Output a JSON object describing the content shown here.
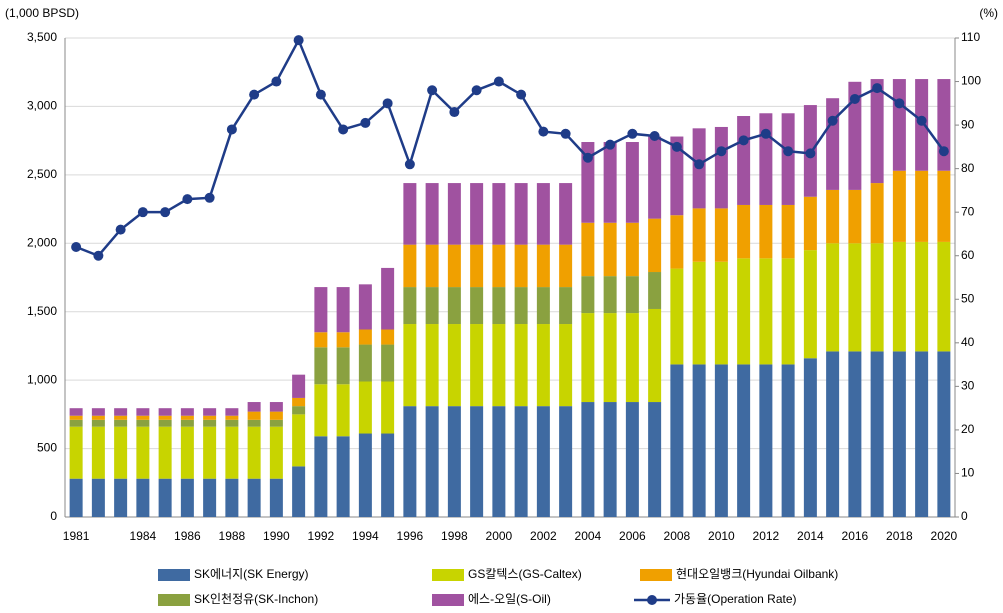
{
  "chart_data": {
    "type": "bar",
    "stacked": true,
    "y_label": "(1,000 BPSD)",
    "y2_label": "(%)",
    "categories": [
      "1981",
      null,
      null,
      "1984",
      null,
      "1986",
      null,
      "1988",
      null,
      "1990",
      null,
      "1992",
      null,
      "1994",
      null,
      "1996",
      null,
      "1998",
      null,
      "2000",
      null,
      "2002",
      null,
      "2004",
      null,
      "2006",
      null,
      "2008",
      null,
      "2010",
      null,
      "2012",
      null,
      "2014",
      null,
      "2016",
      null,
      "2018",
      null,
      "2020"
    ],
    "series": [
      {
        "name": "SK에너지(SK Energy)",
        "color": "#3f6aa1",
        "values": [
          280,
          280,
          280,
          280,
          280,
          280,
          280,
          280,
          280,
          280,
          370,
          590,
          590,
          610,
          610,
          810,
          810,
          810,
          810,
          810,
          810,
          810,
          810,
          840,
          840,
          840,
          840,
          1115,
          1115,
          1115,
          1115,
          1115,
          1115,
          1160,
          1210,
          1210,
          1210,
          1210,
          1210,
          1210
        ]
      },
      {
        "name": "GS칼텍스(GS-Caltex)",
        "color": "#c8d400",
        "values": [
          380,
          380,
          380,
          380,
          380,
          380,
          380,
          380,
          380,
          380,
          380,
          380,
          380,
          380,
          380,
          600,
          600,
          600,
          600,
          600,
          600,
          600,
          600,
          650,
          650,
          650,
          680,
          700,
          750,
          750,
          775,
          775,
          775,
          790,
          790,
          790,
          790,
          800,
          800,
          800
        ]
      },
      {
        "name": "SK인천정유(SK-Inchon)",
        "color": "#8aa140",
        "values": [
          50,
          50,
          50,
          50,
          50,
          50,
          50,
          50,
          50,
          50,
          60,
          270,
          270,
          270,
          270,
          270,
          270,
          270,
          270,
          270,
          270,
          270,
          270,
          270,
          270,
          270,
          270,
          0,
          0,
          0,
          0,
          0,
          0,
          0,
          0,
          0,
          0,
          0,
          0,
          0
        ]
      },
      {
        "name": "현대오일뱅크(Hyundai Oilbank)",
        "color": "#f0a000",
        "values": [
          30,
          30,
          30,
          30,
          30,
          30,
          30,
          30,
          60,
          60,
          60,
          110,
          110,
          110,
          110,
          310,
          310,
          310,
          310,
          310,
          310,
          310,
          310,
          390,
          390,
          390,
          390,
          390,
          390,
          390,
          390,
          390,
          390,
          390,
          390,
          390,
          440,
          520,
          520,
          520
        ]
      },
      {
        "name": "에스-오일(S-Oil)",
        "color": "#a052a0",
        "values": [
          55,
          55,
          55,
          55,
          55,
          55,
          55,
          55,
          70,
          70,
          170,
          330,
          330,
          330,
          450,
          450,
          450,
          450,
          450,
          450,
          450,
          450,
          450,
          590,
          590,
          590,
          600,
          575,
          585,
          595,
          650,
          670,
          670,
          670,
          670,
          790,
          760,
          670,
          670,
          670
        ]
      },
      {
        "name": "가동율(Operation Rate)",
        "color": "#1f3c88",
        "type": "line",
        "axis": "y2",
        "values": [
          62,
          60,
          66,
          70,
          70,
          73,
          73.3,
          89,
          97,
          100,
          109.5,
          97,
          89,
          90.5,
          95,
          81,
          98,
          93,
          98,
          100,
          97,
          88.5,
          88,
          82.5,
          85.5,
          88,
          87.5,
          85,
          81,
          84,
          86.5,
          88,
          84,
          83.5,
          91,
          96,
          98.5,
          95,
          91,
          84
        ]
      }
    ],
    "ylim": [
      0,
      3500
    ],
    "yticks": [
      0,
      500,
      {
        "value": 1000,
        "label": "1,000"
      },
      {
        "value": 1500,
        "label": "1,500"
      },
      {
        "value": 2000,
        "label": "2,000"
      },
      {
        "value": 2500,
        "label": "2,500"
      },
      {
        "value": 3000,
        "label": "3,000"
      },
      {
        "value": 3500,
        "label": "3,500"
      }
    ],
    "y2lim": [
      0,
      110
    ],
    "y2ticks": [
      0,
      10,
      20,
      30,
      40,
      50,
      60,
      70,
      80,
      90,
      100,
      110
    ],
    "grid": true
  }
}
